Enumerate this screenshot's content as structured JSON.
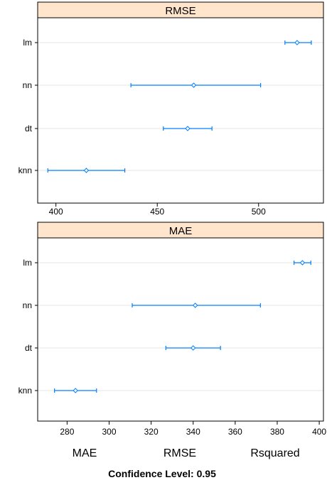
{
  "chart_data": [
    {
      "type": "dotplot-interval",
      "title": "RMSE",
      "categories": [
        "lm",
        "nn",
        "dt",
        "knn"
      ],
      "estimate": [
        519,
        468,
        465,
        415
      ],
      "lower": [
        513,
        437,
        453,
        396
      ],
      "upper": [
        526,
        501,
        477,
        434
      ],
      "xlim": [
        391,
        532
      ],
      "xticks": [
        400,
        450,
        500
      ]
    },
    {
      "type": "dotplot-interval",
      "title": "MAE",
      "categories": [
        "lm",
        "nn",
        "dt",
        "knn"
      ],
      "estimate": [
        392,
        341,
        340,
        284
      ],
      "lower": [
        388,
        311,
        327,
        274
      ],
      "upper": [
        396,
        372,
        353,
        294
      ],
      "xlim": [
        266,
        402
      ],
      "xticks": [
        280,
        300,
        320,
        340,
        360,
        380,
        400
      ]
    }
  ],
  "legend": [
    "MAE",
    "RMSE",
    "Rsquared"
  ],
  "footer": "Confidence Level: 0.95"
}
